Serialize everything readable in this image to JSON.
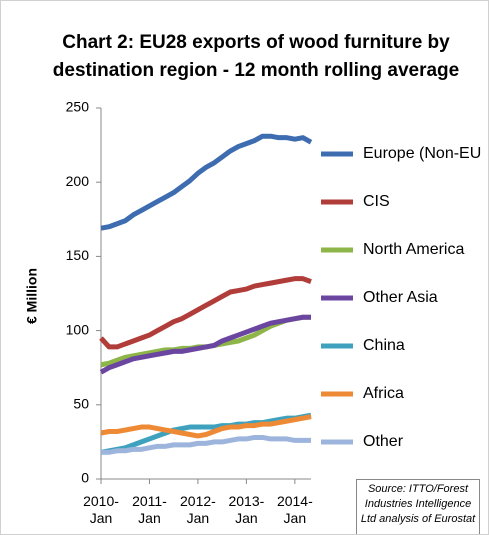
{
  "chart_data": {
    "type": "line",
    "title": [
      "Chart 2: EU28 exports of wood furniture by",
      "destination region - 12 month rolling average"
    ],
    "y_label": "€ Million",
    "source": "Source: ITTO/Forest Industries Intelligence Ltd analysis of Eurostat",
    "categories": [
      "2010-Jan",
      null,
      null,
      null,
      null,
      null,
      "2011-Jan",
      null,
      null,
      null,
      null,
      null,
      "2012-Jan",
      null,
      null,
      null,
      null,
      null,
      "2013-Jan",
      null,
      null,
      null,
      null,
      null,
      "2014-Jan",
      null,
      null
    ],
    "ylim": [
      0,
      250
    ],
    "yticks": [
      0,
      50,
      100,
      150,
      200,
      250
    ],
    "series": [
      {
        "name": "Europe (Non-EU",
        "color": "#3d6cb0",
        "values": [
          169,
          170,
          172,
          174,
          178,
          181,
          184,
          187,
          190,
          193,
          197,
          201,
          206,
          210,
          213,
          217,
          221,
          224,
          226,
          228,
          231,
          231,
          230,
          230,
          229,
          230,
          227
        ]
      },
      {
        "name": "CIS",
        "color": "#b13d3a",
        "values": [
          95,
          89,
          89,
          91,
          93,
          95,
          97,
          100,
          103,
          106,
          108,
          111,
          114,
          117,
          120,
          123,
          126,
          127,
          128,
          130,
          131,
          132,
          133,
          134,
          135,
          135,
          133
        ]
      },
      {
        "name": "North America",
        "color": "#8db548",
        "values": [
          77,
          78,
          80,
          82,
          83,
          84,
          85,
          86,
          87,
          87,
          88,
          88,
          89,
          89,
          90,
          91,
          92,
          93,
          95,
          97,
          100,
          103,
          105,
          107,
          108,
          109,
          109
        ]
      },
      {
        "name": "Other Asia",
        "color": "#6b46a0",
        "values": [
          72,
          75,
          77,
          79,
          81,
          82,
          83,
          84,
          85,
          86,
          86,
          87,
          88,
          89,
          90,
          93,
          95,
          97,
          99,
          101,
          103,
          105,
          106,
          107,
          108,
          109,
          109
        ]
      },
      {
        "name": "China",
        "color": "#3ea2be",
        "values": [
          18,
          19,
          20,
          21,
          23,
          25,
          27,
          29,
          31,
          33,
          34,
          35,
          35,
          35,
          35,
          36,
          36,
          37,
          37,
          38,
          38,
          39,
          40,
          41,
          41,
          42,
          43
        ]
      },
      {
        "name": "Africa",
        "color": "#ee8a35",
        "values": [
          31,
          32,
          32,
          33,
          34,
          35,
          35,
          34,
          33,
          32,
          31,
          30,
          29,
          30,
          32,
          34,
          35,
          35,
          36,
          36,
          37,
          37,
          38,
          39,
          40,
          41,
          42
        ]
      },
      {
        "name": "Other",
        "color": "#9db4dc",
        "values": [
          18,
          18,
          19,
          19,
          20,
          20,
          21,
          22,
          22,
          23,
          23,
          23,
          24,
          24,
          25,
          25,
          26,
          27,
          27,
          28,
          28,
          27,
          27,
          27,
          26,
          26,
          26
        ]
      }
    ]
  }
}
